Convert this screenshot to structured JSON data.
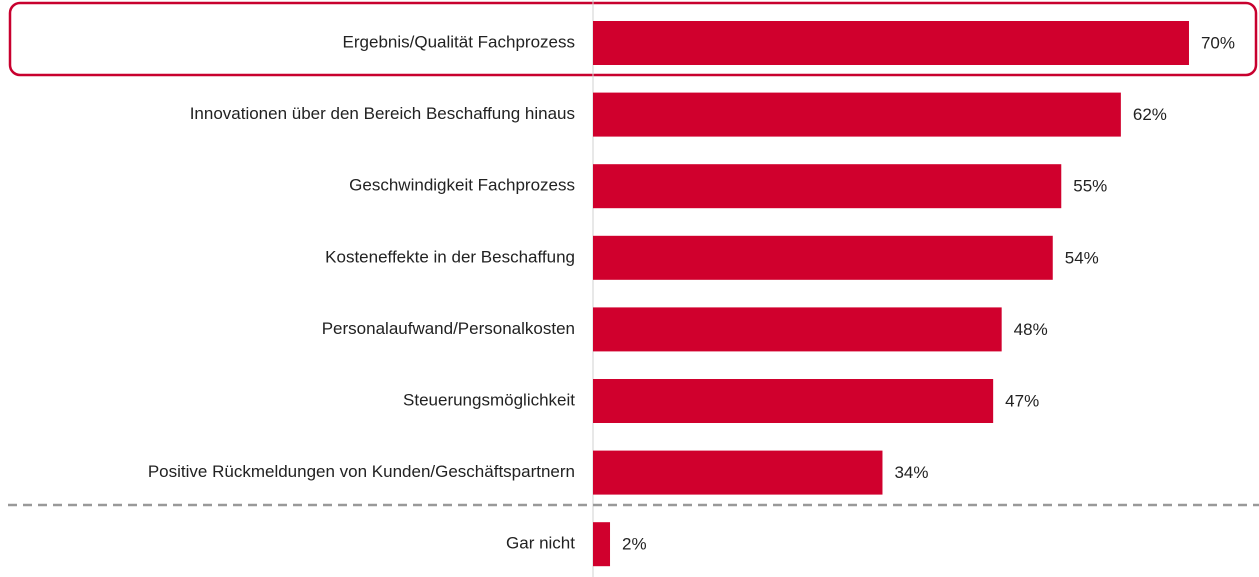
{
  "chart_data": {
    "type": "bar",
    "orientation": "horizontal",
    "categories": [
      "Ergebnis/Qualität Fachprozess",
      "Innovationen über den Bereich Beschaffung hinaus",
      "Geschwindigkeit Fachprozess",
      "Kosteneffekte in der Beschaffung",
      "Personalaufwand/Personalkosten",
      "Steuerungsmöglichkeit",
      "Positive Rückmeldungen von Kunden/Geschäftspartnern",
      "Gar nicht"
    ],
    "values": [
      70,
      62,
      55,
      54,
      48,
      47,
      34,
      2
    ],
    "value_labels": [
      "70%",
      "62%",
      "55%",
      "54%",
      "48%",
      "47%",
      "34%",
      "2%"
    ],
    "color": "#d0002d"
  }
}
